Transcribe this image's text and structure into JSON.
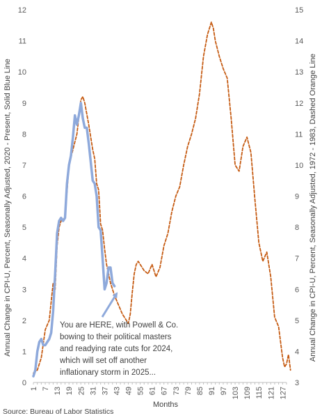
{
  "chart_data": {
    "type": "line",
    "xlabel": "Months",
    "ylabel_left": "Annual Change in CPI-U, Percent, Seasonally Adjusted, 2020 - Present, Solid Blue Line",
    "ylabel_right": "Annual Change in CPI-U, Percent, Seasonally Adjusted, 1972 - 1983, Dashed Orange Line",
    "xlim": [
      1,
      129
    ],
    "x_ticks": [
      "1",
      "7",
      "13",
      "19",
      "25",
      "31",
      "37",
      "43",
      "49",
      "55",
      "61",
      "67",
      "73",
      "79",
      "85",
      "91",
      "97",
      "103",
      "109",
      "115",
      "121",
      "127"
    ],
    "ylim_left": [
      0,
      12
    ],
    "y_ticks_left": [
      "0",
      "1",
      "2",
      "3",
      "4",
      "5",
      "6",
      "7",
      "8",
      "9",
      "10",
      "11",
      "12"
    ],
    "ylim_right": [
      3,
      15
    ],
    "y_ticks_right": [
      "3",
      "4",
      "5",
      "6",
      "7",
      "8",
      "9",
      "10",
      "11",
      "12",
      "13",
      "14",
      "15"
    ],
    "grid": false,
    "series": [
      {
        "axis": "left",
        "style": "solid",
        "color": "#8EA9DB",
        "points": [
          [
            1,
            0.2
          ],
          [
            2,
            0.4
          ],
          [
            3,
            1.0
          ],
          [
            4,
            1.3
          ],
          [
            5,
            1.4
          ],
          [
            6,
            1.2
          ],
          [
            7,
            1.2
          ],
          [
            8,
            1.3
          ],
          [
            9,
            1.4
          ],
          [
            10,
            1.6
          ],
          [
            11,
            2.3
          ],
          [
            12,
            3.5
          ],
          [
            13,
            4.8
          ],
          [
            14,
            5.2
          ],
          [
            15,
            5.3
          ],
          [
            16,
            5.2
          ],
          [
            17,
            5.3
          ],
          [
            18,
            6.4
          ],
          [
            19,
            7.0
          ],
          [
            20,
            7.3
          ],
          [
            21,
            7.9
          ],
          [
            22,
            8.6
          ],
          [
            23,
            8.3
          ],
          [
            24,
            8.6
          ],
          [
            25,
            9.0
          ],
          [
            26,
            8.5
          ],
          [
            27,
            8.2
          ],
          [
            28,
            8.2
          ],
          [
            29,
            7.7
          ],
          [
            30,
            7.1
          ],
          [
            31,
            6.5
          ],
          [
            32,
            6.4
          ],
          [
            33,
            6.0
          ],
          [
            34,
            5.0
          ],
          [
            35,
            4.9
          ],
          [
            36,
            4.0
          ],
          [
            37,
            3.0
          ],
          [
            38,
            3.2
          ],
          [
            39,
            3.7
          ],
          [
            40,
            3.7
          ],
          [
            41,
            3.2
          ],
          [
            42,
            3.1
          ]
        ]
      },
      {
        "axis": "right",
        "style": "dashed",
        "color": "#C55A11",
        "points": [
          [
            1,
            3.3
          ],
          [
            3,
            3.4
          ],
          [
            5,
            3.8
          ],
          [
            7,
            4.7
          ],
          [
            9,
            5.0
          ],
          [
            11,
            6.2
          ],
          [
            12,
            6.0
          ],
          [
            13,
            7.4
          ],
          [
            14,
            8.0
          ],
          [
            15,
            8.2
          ],
          [
            17,
            8.3
          ],
          [
            19,
            10.0
          ],
          [
            21,
            10.5
          ],
          [
            23,
            11.0
          ],
          [
            25,
            12.1
          ],
          [
            26,
            12.2
          ],
          [
            27,
            12.0
          ],
          [
            29,
            11.3
          ],
          [
            31,
            10.5
          ],
          [
            32,
            10.2
          ],
          [
            33,
            9.4
          ],
          [
            34,
            9.2
          ],
          [
            35,
            8.1
          ],
          [
            36,
            7.9
          ],
          [
            37,
            7.3
          ],
          [
            38,
            6.8
          ],
          [
            39,
            6.5
          ],
          [
            40,
            6.2
          ],
          [
            41,
            6.0
          ],
          [
            42,
            5.8
          ],
          [
            44,
            5.5
          ],
          [
            46,
            5.2
          ],
          [
            48,
            5.0
          ],
          [
            49,
            4.9
          ],
          [
            50,
            5.2
          ],
          [
            51,
            5.9
          ],
          [
            52,
            6.5
          ],
          [
            53,
            6.8
          ],
          [
            54,
            6.9
          ],
          [
            55,
            6.8
          ],
          [
            57,
            6.6
          ],
          [
            59,
            6.5
          ],
          [
            61,
            6.8
          ],
          [
            63,
            6.4
          ],
          [
            65,
            6.7
          ],
          [
            67,
            7.4
          ],
          [
            69,
            7.8
          ],
          [
            71,
            8.5
          ],
          [
            73,
            9.0
          ],
          [
            75,
            9.3
          ],
          [
            77,
            10.0
          ],
          [
            79,
            10.6
          ],
          [
            81,
            11.0
          ],
          [
            83,
            11.5
          ],
          [
            85,
            12.3
          ],
          [
            87,
            13.5
          ],
          [
            89,
            14.2
          ],
          [
            91,
            14.6
          ],
          [
            92,
            14.4
          ],
          [
            93,
            14.0
          ],
          [
            95,
            13.5
          ],
          [
            97,
            13.1
          ],
          [
            99,
            12.8
          ],
          [
            101,
            11.5
          ],
          [
            103,
            10.0
          ],
          [
            105,
            9.8
          ],
          [
            107,
            10.6
          ],
          [
            109,
            10.9
          ],
          [
            111,
            10.4
          ],
          [
            113,
            8.9
          ],
          [
            115,
            7.5
          ],
          [
            117,
            6.9
          ],
          [
            119,
            7.2
          ],
          [
            121,
            6.4
          ],
          [
            123,
            5.1
          ],
          [
            125,
            4.8
          ],
          [
            127,
            3.8
          ],
          [
            128,
            3.5
          ],
          [
            129,
            3.6
          ],
          [
            130,
            3.9
          ],
          [
            131,
            3.4
          ]
        ]
      }
    ],
    "annotation": {
      "lines": [
        "You are HERE, with Powell & Co.",
        "bowing to their political masters",
        "and readying rate cuts for 2024,",
        "which will set off another",
        "inflationary storm in 2025..."
      ],
      "arrow_to": [
        42,
        3.0
      ],
      "arrow_color": "#8EA9DB"
    }
  },
  "source": "Source: Bureau of Labor Statistics"
}
